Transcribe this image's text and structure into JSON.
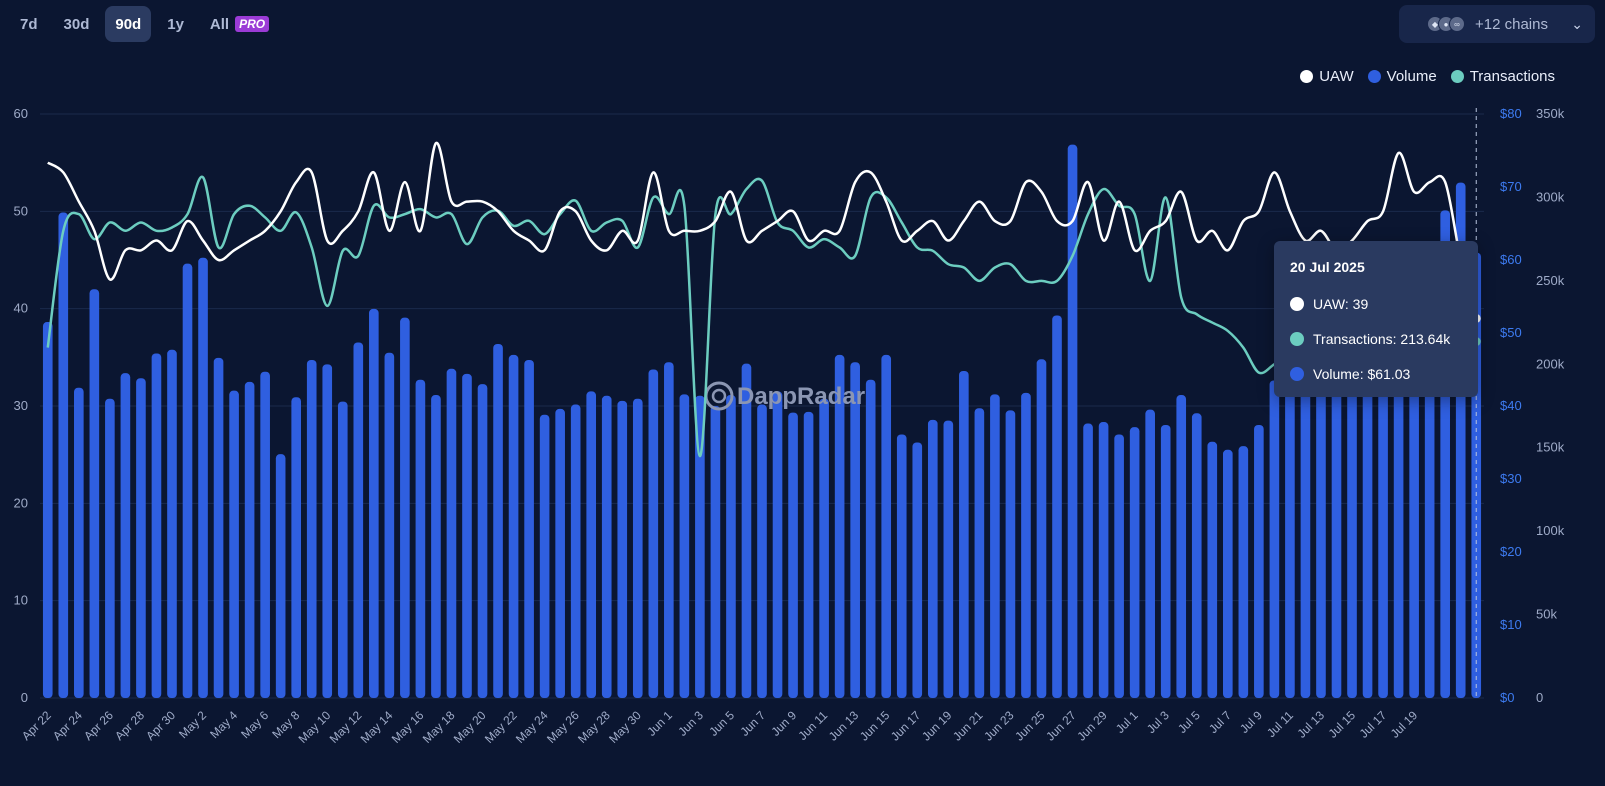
{
  "range": {
    "buttons": [
      "7d",
      "30d",
      "90d",
      "1y",
      "All"
    ],
    "active": "90d",
    "pro_badge": "PRO"
  },
  "chains": {
    "label": "+12 chains",
    "icon_names": [
      "ethereum-icon",
      "chain-icon",
      "chain-icon"
    ]
  },
  "colors": {
    "uaw": "#ffffff",
    "volume": "#2f5fe0",
    "transactions": "#6ccdc0",
    "background": "#0b1631",
    "tooltip": "#2a3a60"
  },
  "watermark": "DappRadar",
  "tooltip": {
    "date": "20 Jul 2025",
    "uaw_label": "UAW: 39",
    "tx_label": "Transactions: 213.64k",
    "vol_label": "Volume: $61.03"
  },
  "chart_data": {
    "type": "bar",
    "legend": [
      "UAW",
      "Volume",
      "Transactions"
    ],
    "legend_placement": "top-right",
    "grid": true,
    "x_tick_labels": [
      "Apr 22",
      "Apr 24",
      "Apr 26",
      "Apr 28",
      "Apr 30",
      "May 2",
      "May 4",
      "May 6",
      "May 8",
      "May 10",
      "May 12",
      "May 14",
      "May 16",
      "May 18",
      "May 20",
      "May 22",
      "May 24",
      "May 26",
      "May 28",
      "May 30",
      "Jun 1",
      "Jun 3",
      "Jun 5",
      "Jun 7",
      "Jun 9",
      "Jun 11",
      "Jun 13",
      "Jun 15",
      "Jun 17",
      "Jun 19",
      "Jun 21",
      "Jun 23",
      "Jun 25",
      "Jun 27",
      "Jun 29",
      "Jul 1",
      "Jul 3",
      "Jul 5",
      "Jul 7",
      "Jul 9",
      "Jul 11",
      "Jul 13",
      "Jul 15",
      "Jul 17",
      "Jul 19"
    ],
    "x_start": "Apr 22",
    "x_end": "Jul 20",
    "axes": {
      "uaw": {
        "ylim": [
          0,
          60
        ],
        "ticks": [
          "0",
          "10",
          "20",
          "30",
          "40",
          "50",
          "60"
        ]
      },
      "volume": {
        "ylim": [
          0,
          80
        ],
        "ticks": [
          "$0",
          "$10",
          "$20",
          "$30",
          "$40",
          "$50",
          "$60",
          "$70",
          "$80"
        ]
      },
      "transactions": {
        "ylim": [
          0,
          350000
        ],
        "ticks": [
          "0",
          "50k",
          "100k",
          "150k",
          "200k",
          "250k",
          "300k",
          "350k"
        ]
      }
    },
    "series": [
      {
        "name": "Volume",
        "axis": "volume",
        "values": [
          51.5,
          66.5,
          42.5,
          56.0,
          41.0,
          44.5,
          43.8,
          47.2,
          47.7,
          59.5,
          60.3,
          46.6,
          42.1,
          43.3,
          44.7,
          33.4,
          41.2,
          46.3,
          45.7,
          40.6,
          48.7,
          53.3,
          47.3,
          52.1,
          43.6,
          41.5,
          45.1,
          44.4,
          43.0,
          48.5,
          47.0,
          46.3,
          38.8,
          39.6,
          40.2,
          42.0,
          41.4,
          40.7,
          41.0,
          45.0,
          46.0,
          41.6,
          41.4,
          40.0,
          41.5,
          45.8,
          40.2,
          42.0,
          39.1,
          39.2,
          41.0,
          47.0,
          46.0,
          43.6,
          47.0,
          36.1,
          35.0,
          38.1,
          38.0,
          44.8,
          39.7,
          41.6,
          39.4,
          41.8,
          46.4,
          52.4,
          75.8,
          37.6,
          37.8,
          36.1,
          37.1,
          39.5,
          37.4,
          41.5,
          39.0,
          35.1,
          34.0,
          34.5,
          37.4,
          43.5,
          43.8,
          44.2,
          47.5,
          48.2,
          48.6,
          50.1,
          48.6,
          49.3,
          49.2,
          48.6,
          66.8,
          70.6,
          61.0
        ]
      },
      {
        "name": "UAW",
        "axis": "uaw",
        "values": [
          55,
          54,
          51,
          48,
          43,
          46,
          46,
          47,
          46,
          49,
          47,
          45,
          46,
          47,
          48,
          50,
          53,
          54,
          47,
          48,
          50,
          54,
          48,
          53,
          48,
          57,
          51,
          51,
          51,
          50,
          48,
          47,
          46,
          50,
          50,
          47,
          46,
          48,
          47,
          54,
          48,
          48,
          48,
          49,
          52,
          47,
          48,
          49,
          50,
          47,
          48,
          48,
          53,
          54,
          51,
          47,
          48,
          49,
          47,
          49,
          51,
          49,
          49,
          53,
          52,
          49,
          49,
          53,
          47,
          51,
          46,
          48,
          49,
          52,
          47,
          48,
          46,
          49,
          50,
          54,
          50,
          47,
          48,
          46,
          47,
          49,
          50,
          56,
          52,
          53,
          53,
          45,
          39
        ]
      },
      {
        "name": "Transactions",
        "axis": "transactions",
        "values": [
          210000,
          280000,
          290000,
          275000,
          285000,
          280000,
          285000,
          280000,
          282000,
          290000,
          312000,
          270000,
          290000,
          295000,
          288000,
          280000,
          291000,
          270000,
          235000,
          268000,
          265000,
          295000,
          288000,
          290000,
          293000,
          288000,
          290000,
          272000,
          288000,
          292000,
          283000,
          286000,
          278000,
          290000,
          298000,
          280000,
          285000,
          286000,
          270000,
          300000,
          290000,
          295000,
          145000,
          290000,
          290000,
          305000,
          310000,
          285000,
          280000,
          270000,
          275000,
          270000,
          265000,
          300000,
          300000,
          285000,
          270000,
          268000,
          260000,
          258000,
          250000,
          258000,
          260000,
          250000,
          250000,
          250000,
          265000,
          290000,
          305000,
          295000,
          290000,
          250000,
          300000,
          240000,
          230000,
          225000,
          220000,
          210000,
          195000,
          200000,
          205000,
          210000,
          212000,
          207000,
          205000,
          202000,
          205000,
          200000,
          198000,
          200000,
          203000,
          208000,
          213640
        ]
      }
    ]
  }
}
